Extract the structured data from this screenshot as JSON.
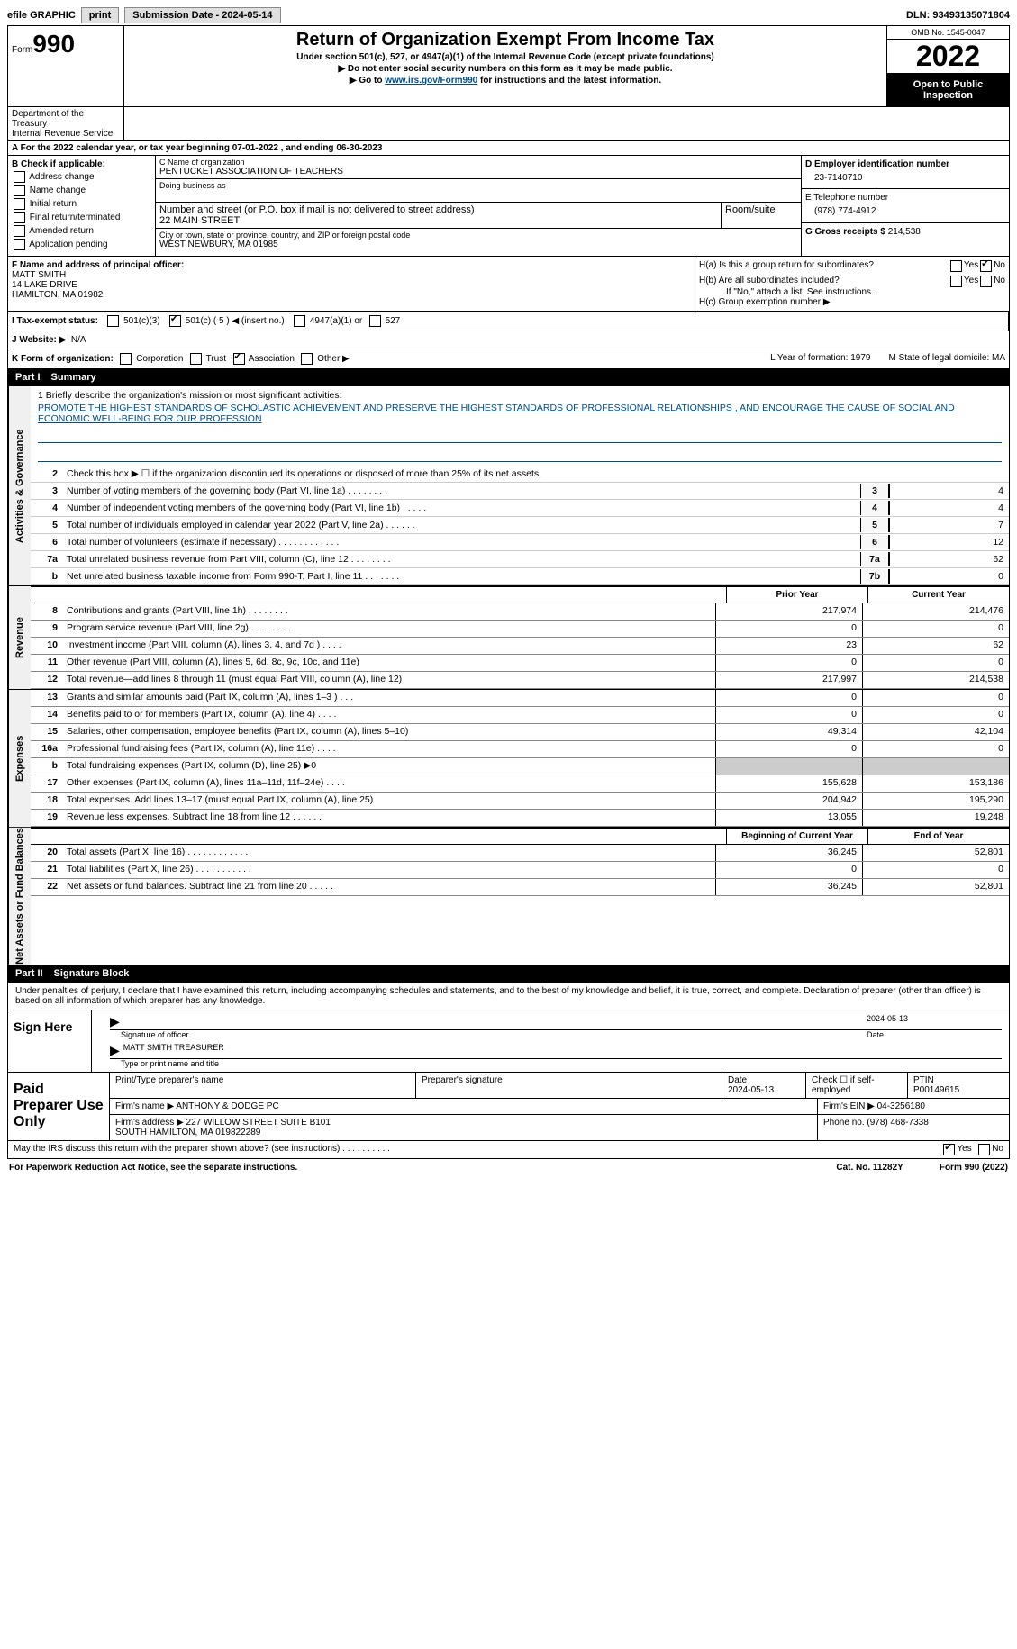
{
  "topbar": {
    "efile": "efile GRAPHIC",
    "print": "print",
    "sub_label": "Submission Date - 2024-05-14",
    "dln_label": "DLN: 93493135071804"
  },
  "header": {
    "form_label": "Form",
    "form_num": "990",
    "title": "Return of Organization Exempt From Income Tax",
    "sub1": "Under section 501(c), 527, or 4947(a)(1) of the Internal Revenue Code (except private foundations)",
    "sub2": "▶ Do not enter social security numbers on this form as it may be made public.",
    "sub3_pre": "▶ Go to ",
    "sub3_link": "www.irs.gov/Form990",
    "sub3_post": " for instructions and the latest information.",
    "dept": "Department of the Treasury\nInternal Revenue Service",
    "omb": "OMB No. 1545-0047",
    "year": "2022",
    "open": "Open to Public Inspection"
  },
  "blockA": "A For the 2022 calendar year, or tax year beginning 07-01-2022    , and ending 06-30-2023",
  "blockB": {
    "label": "B Check if applicable:",
    "items": [
      "Address change",
      "Name change",
      "Initial return",
      "Final return/terminated",
      "Amended return",
      "Application pending"
    ]
  },
  "blockC": {
    "name_lbl": "C Name of organization",
    "name": "PENTUCKET ASSOCIATION OF TEACHERS",
    "dba_lbl": "Doing business as",
    "addr_lbl": "Number and street (or P.O. box if mail is not delivered to street address)",
    "addr": "22 MAIN STREET",
    "room_lbl": "Room/suite",
    "city_lbl": "City or town, state or province, country, and ZIP or foreign postal code",
    "city": "WEST NEWBURY, MA  01985"
  },
  "blockD": {
    "ein_lbl": "D Employer identification number",
    "ein": "23-7140710",
    "tel_lbl": "E Telephone number",
    "tel": "(978) 774-4912",
    "gross_lbl": "G Gross receipts $ ",
    "gross": "214,538"
  },
  "blockF": {
    "lbl": "F  Name and address of principal officer:",
    "name": "MATT SMITH",
    "addr1": "14 LAKE DRIVE",
    "addr2": "HAMILTON, MA  01982"
  },
  "blockH": {
    "a": "H(a)  Is this a group return for subordinates?",
    "b": "H(b)  Are all subordinates included?",
    "b_note": "If \"No,\" attach a list. See instructions.",
    "c": "H(c)  Group exemption number ▶"
  },
  "blockI": {
    "lbl": "I   Tax-exempt status:",
    "opts": [
      "501(c)(3)",
      "501(c) ( 5 ) ◀ (insert no.)",
      "4947(a)(1) or",
      "527"
    ]
  },
  "blockJ": {
    "lbl": "J   Website: ▶",
    "val": "N/A"
  },
  "blockK": {
    "lbl": "K Form of organization:",
    "opts": [
      "Corporation",
      "Trust",
      "Association",
      "Other ▶"
    ],
    "l": "L Year of formation: 1979",
    "m": "M State of legal domicile: MA"
  },
  "part1": {
    "pn": "Part I",
    "title": "Summary"
  },
  "mission": {
    "lbl": "1  Briefly describe the organization's mission or most significant activities:",
    "text": "PROMOTE THE HIGHEST STANDARDS OF SCHOLASTIC ACHIEVEMENT AND PRESERVE THE HIGHEST STANDARDS OF PROFESSIONAL RELATIONSHIPS , AND ENCOURAGE THE CAUSE OF SOCIAL AND ECONOMIC WELL-BEING FOR OUR PROFESSION"
  },
  "lines_gov": [
    {
      "n": "2",
      "d": "Check this box ▶ ☐  if the organization discontinued its operations or disposed of more than 25% of its net assets.",
      "box": "",
      "v": ""
    },
    {
      "n": "3",
      "d": "Number of voting members of the governing body (Part VI, line 1a)   .    .    .    .    .    .    .    .",
      "box": "3",
      "v": "4"
    },
    {
      "n": "4",
      "d": "Number of independent voting members of the governing body (Part VI, line 1b)   .    .    .    .    .",
      "box": "4",
      "v": "4"
    },
    {
      "n": "5",
      "d": "Total number of individuals employed in calendar year 2022 (Part V, line 2a)   .    .    .    .    .    .",
      "box": "5",
      "v": "7"
    },
    {
      "n": "6",
      "d": "Total number of volunteers (estimate if necessary)   .    .    .    .    .    .    .    .    .    .    .    .",
      "box": "6",
      "v": "12"
    },
    {
      "n": "7a",
      "d": "Total unrelated business revenue from Part VIII, column (C), line 12   .    .    .    .    .    .    .    .",
      "box": "7a",
      "v": "62"
    },
    {
      "n": "b",
      "d": "Net unrelated business taxable income from Form 990-T, Part I, line 11   .    .    .    .    .    .    .",
      "box": "7b",
      "v": "0"
    }
  ],
  "hdr_prior": "Prior Year",
  "hdr_current": "Current Year",
  "lines_rev": [
    {
      "n": "8",
      "d": "Contributions and grants (Part VIII, line 1h)   .    .    .    .    .    .    .    .",
      "v1": "217,974",
      "v2": "214,476"
    },
    {
      "n": "9",
      "d": "Program service revenue (Part VIII, line 2g)   .    .    .    .    .    .    .    .",
      "v1": "0",
      "v2": "0"
    },
    {
      "n": "10",
      "d": "Investment income (Part VIII, column (A), lines 3, 4, and 7d )   .    .    .    .",
      "v1": "23",
      "v2": "62"
    },
    {
      "n": "11",
      "d": "Other revenue (Part VIII, column (A), lines 5, 6d, 8c, 9c, 10c, and 11e)",
      "v1": "0",
      "v2": "0"
    },
    {
      "n": "12",
      "d": "Total revenue—add lines 8 through 11 (must equal Part VIII, column (A), line 12)",
      "v1": "217,997",
      "v2": "214,538"
    }
  ],
  "lines_exp": [
    {
      "n": "13",
      "d": "Grants and similar amounts paid (Part IX, column (A), lines 1–3 )   .    .    .",
      "v1": "0",
      "v2": "0"
    },
    {
      "n": "14",
      "d": "Benefits paid to or for members (Part IX, column (A), line 4)   .    .    .    .",
      "v1": "0",
      "v2": "0"
    },
    {
      "n": "15",
      "d": "Salaries, other compensation, employee benefits (Part IX, column (A), lines 5–10)",
      "v1": "49,314",
      "v2": "42,104"
    },
    {
      "n": "16a",
      "d": "Professional fundraising fees (Part IX, column (A), line 11e)   .    .    .    .",
      "v1": "0",
      "v2": "0"
    },
    {
      "n": "b",
      "d": "Total fundraising expenses (Part IX, column (D), line 25) ▶0",
      "v1": "shade",
      "v2": "shade"
    },
    {
      "n": "17",
      "d": "Other expenses (Part IX, column (A), lines 11a–11d, 11f–24e)   .    .    .    .",
      "v1": "155,628",
      "v2": "153,186"
    },
    {
      "n": "18",
      "d": "Total expenses. Add lines 13–17 (must equal Part IX, column (A), line 25)",
      "v1": "204,942",
      "v2": "195,290"
    },
    {
      "n": "19",
      "d": "Revenue less expenses. Subtract line 18 from line 12   .    .    .    .    .    .",
      "v1": "13,055",
      "v2": "19,248"
    }
  ],
  "hdr_begin": "Beginning of Current Year",
  "hdr_end": "End of Year",
  "lines_net": [
    {
      "n": "20",
      "d": "Total assets (Part X, line 16)   .    .    .    .    .    .    .    .    .    .    .    .",
      "v1": "36,245",
      "v2": "52,801"
    },
    {
      "n": "21",
      "d": "Total liabilities (Part X, line 26)   .    .    .    .    .    .    .    .    .    .    .",
      "v1": "0",
      "v2": "0"
    },
    {
      "n": "22",
      "d": "Net assets or fund balances. Subtract line 21 from line 20   .    .    .    .    .",
      "v1": "36,245",
      "v2": "52,801"
    }
  ],
  "vtabs": {
    "gov": "Activities & Governance",
    "rev": "Revenue",
    "exp": "Expenses",
    "net": "Net Assets or Fund Balances"
  },
  "part2": {
    "pn": "Part II",
    "title": "Signature Block"
  },
  "declaration": "Under penalties of perjury, I declare that I have examined this return, including accompanying schedules and statements, and to the best of my knowledge and belief, it is true, correct, and complete. Declaration of preparer (other than officer) is based on all information of which preparer has any knowledge.",
  "sign": {
    "lbl": "Sign Here",
    "sig_lbl": "Signature of officer",
    "date_lbl": "Date",
    "date": "2024-05-13",
    "name": "MATT SMITH  TREASURER",
    "name_lbl": "Type or print name and title"
  },
  "preparer": {
    "lbl": "Paid Preparer Use Only",
    "r1": {
      "c1": "Print/Type preparer's name",
      "c2": "Preparer's signature",
      "c3": "Date\n2024-05-13",
      "c4": "Check ☐ if self-employed",
      "c5": "PTIN\nP00149615"
    },
    "r2": {
      "c1": "Firm's name    ▶ ANTHONY & DODGE PC",
      "c2": "Firm's EIN ▶ 04-3256180"
    },
    "r3": {
      "c1": "Firm's address ▶ 227 WILLOW STREET SUITE B101\n                        SOUTH HAMILTON, MA  019822289",
      "c2": "Phone no. (978) 468-7338"
    }
  },
  "may_discuss": "May the IRS discuss this return with the preparer shown above? (see instructions)    .    .    .    .    .    .    .    .    .    .",
  "footer": {
    "left": "For Paperwork Reduction Act Notice, see the separate instructions.",
    "mid": "Cat. No. 11282Y",
    "right": "Form 990 (2022)"
  }
}
